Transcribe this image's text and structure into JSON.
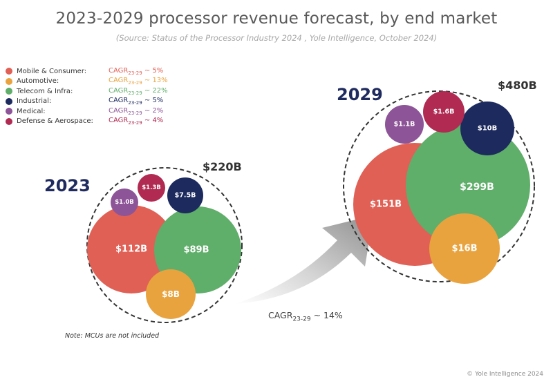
{
  "title": "2023-2029 processor revenue forecast, by end market",
  "subtitle": "(Source: Status of the Processor Industry 2024 , Yole Intelligence, October 2024)",
  "legend": [
    {
      "name": "Mobile & Consumer:",
      "cagr_prefix": "CAGR",
      "cagr_sub": "23-29",
      "cagr_suffix": " ~ 5%",
      "color": "#e06055"
    },
    {
      "name": "Automotive:",
      "cagr_prefix": "CAGR",
      "cagr_sub": "23-29",
      "cagr_suffix": " ~ 13%",
      "color": "#e9a33e"
    },
    {
      "name": "Telecom & Infra:",
      "cagr_prefix": "CAGR",
      "cagr_sub": "23-29",
      "cagr_suffix": " ~ 22%",
      "color": "#5fae6a"
    },
    {
      "name": "Industrial:",
      "cagr_prefix": "CAGR",
      "cagr_sub": "23-29",
      "cagr_suffix": " ~ 5%",
      "color": "#1c2a5e"
    },
    {
      "name": "Medical:",
      "cagr_prefix": "CAGR",
      "cagr_sub": "23-29",
      "cagr_suffix": " ~ 2%",
      "color": "#8d5497"
    },
    {
      "name": "Defense & Aerospace:",
      "cagr_prefix": "CAGR",
      "cagr_sub": "23-29",
      "cagr_suffix": " ~ 4%",
      "color": "#b02a52"
    }
  ],
  "year_2023": {
    "label": "2023",
    "total": "$220B"
  },
  "year_2029": {
    "label": "2029",
    "total": "$480B"
  },
  "overall_cagr": {
    "prefix": "CAGR",
    "sub": "23-29",
    "suffix": " ~ 14%"
  },
  "note": "Note: MCUs are not included",
  "copyright": "© Yole Intelligence 2024",
  "chart_data": {
    "type": "bubble",
    "title": "2023-2029 processor revenue forecast, by end market",
    "unit": "$B",
    "series": [
      {
        "name": "2023",
        "total": 220,
        "total_label": "$220B",
        "values": [
          {
            "market": "Mobile & Consumer",
            "value": 112,
            "label": "$112B"
          },
          {
            "market": "Telecom & Infra",
            "value": 89,
            "label": "$89B"
          },
          {
            "market": "Automotive",
            "value": 8,
            "label": "$8B"
          },
          {
            "market": "Industrial",
            "value": 7.5,
            "label": "$7.5B"
          },
          {
            "market": "Defense & Aerospace",
            "value": 1.3,
            "label": "$1.3B"
          },
          {
            "market": "Medical",
            "value": 1.0,
            "label": "$1.0B"
          }
        ]
      },
      {
        "name": "2029",
        "total": 480,
        "total_label": "$480B",
        "values": [
          {
            "market": "Mobile & Consumer",
            "value": 151,
            "label": "$151B"
          },
          {
            "market": "Telecom & Infra",
            "value": 299,
            "label": "$299B"
          },
          {
            "market": "Automotive",
            "value": 16,
            "label": "$16B"
          },
          {
            "market": "Industrial",
            "value": 10,
            "label": "$10B"
          },
          {
            "market": "Defense & Aerospace",
            "value": 1.6,
            "label": "$1.6B"
          },
          {
            "market": "Medical",
            "value": 1.1,
            "label": "$1.1B"
          }
        ]
      }
    ]
  }
}
